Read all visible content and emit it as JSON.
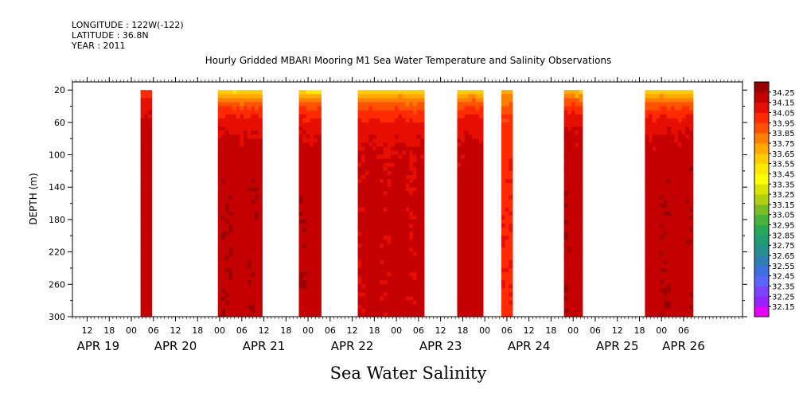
{
  "header": {
    "longitude": "LONGITUDE : 122W(-122)",
    "latitude": "LATITUDE : 36.8N",
    "year": "YEAR : 2011"
  },
  "chart_data": {
    "type": "heatmap",
    "title": "Hourly Gridded MBARI Mooring M1 Sea Water Temperature and Salinity Observations",
    "xlabel": "Sea Water Salinity",
    "ylabel": "DEPTH (m)",
    "xlim_hours": [
      8,
      190
    ],
    "ylim": [
      300,
      10
    ],
    "y_ticks": [
      20,
      60,
      100,
      140,
      180,
      220,
      260,
      300
    ],
    "x_hour_ticks": [
      {
        "h": 12,
        "label": "12"
      },
      {
        "h": 18,
        "label": "18"
      },
      {
        "h": 24,
        "label": "00"
      },
      {
        "h": 30,
        "label": "06"
      },
      {
        "h": 36,
        "label": "12"
      },
      {
        "h": 42,
        "label": "18"
      },
      {
        "h": 48,
        "label": "00"
      },
      {
        "h": 54,
        "label": "06"
      },
      {
        "h": 60,
        "label": "12"
      },
      {
        "h": 66,
        "label": "18"
      },
      {
        "h": 72,
        "label": "00"
      },
      {
        "h": 78,
        "label": "06"
      },
      {
        "h": 84,
        "label": "12"
      },
      {
        "h": 90,
        "label": "18"
      },
      {
        "h": 96,
        "label": "00"
      },
      {
        "h": 102,
        "label": "06"
      },
      {
        "h": 108,
        "label": "12"
      },
      {
        "h": 114,
        "label": "18"
      },
      {
        "h": 120,
        "label": "00"
      },
      {
        "h": 126,
        "label": "06"
      },
      {
        "h": 132,
        "label": "12"
      },
      {
        "h": 138,
        "label": "18"
      },
      {
        "h": 144,
        "label": "00"
      },
      {
        "h": 150,
        "label": "06"
      },
      {
        "h": 156,
        "label": "12"
      },
      {
        "h": 162,
        "label": "18"
      },
      {
        "h": 168,
        "label": "00"
      },
      {
        "h": 174,
        "label": "06"
      }
    ],
    "day_labels": [
      {
        "h": 15,
        "label": "APR 19"
      },
      {
        "h": 36,
        "label": "APR 20"
      },
      {
        "h": 60,
        "label": "APR 21"
      },
      {
        "h": 84,
        "label": "APR 22"
      },
      {
        "h": 108,
        "label": "APR 23"
      },
      {
        "h": 132,
        "label": "APR 24"
      },
      {
        "h": 156,
        "label": "APR 25"
      },
      {
        "h": 174,
        "label": "APR 26"
      }
    ],
    "data_segments": [
      {
        "start": 26.5,
        "end": 29.5,
        "top": 34.0,
        "deep": 34.22,
        "noise": 0.02
      },
      {
        "start": 47.5,
        "end": 59.5,
        "top": 33.58,
        "deep": 34.22,
        "noise": 0.03
      },
      {
        "start": 69.5,
        "end": 75.5,
        "top": 33.55,
        "deep": 34.22,
        "noise": 0.03
      },
      {
        "start": 85.5,
        "end": 103.5,
        "top": 33.6,
        "deep": 34.18,
        "noise": 0.03
      },
      {
        "start": 112.5,
        "end": 119.5,
        "top": 33.62,
        "deep": 34.2,
        "noise": 0.03
      },
      {
        "start": 124.5,
        "end": 127.5,
        "top": 33.7,
        "deep": 34.05,
        "noise": 0.02
      },
      {
        "start": 141.5,
        "end": 146.5,
        "top": 33.68,
        "deep": 34.22,
        "noise": 0.03
      },
      {
        "start": 163.5,
        "end": 176.5,
        "top": 33.6,
        "deep": 34.22,
        "noise": 0.03
      }
    ],
    "colorbar": {
      "levels": [
        32.15,
        32.25,
        32.35,
        32.45,
        32.55,
        32.65,
        32.75,
        32.85,
        32.95,
        33.05,
        33.15,
        33.25,
        33.35,
        33.45,
        33.55,
        33.65,
        33.75,
        33.85,
        33.95,
        34.05,
        34.15,
        34.25
      ],
      "colors": [
        "#e600ff",
        "#9a22ff",
        "#7a44ff",
        "#5a66ff",
        "#3f6fe0",
        "#2f7fb5",
        "#268f90",
        "#209c72",
        "#26a85a",
        "#46b33c",
        "#7abd22",
        "#b0cf10",
        "#d8e400",
        "#ffff00",
        "#ffe800",
        "#ffcc00",
        "#ffa800",
        "#ff8000",
        "#ff5200",
        "#ff2a00",
        "#e60e00",
        "#c40000",
        "#990000"
      ]
    }
  }
}
